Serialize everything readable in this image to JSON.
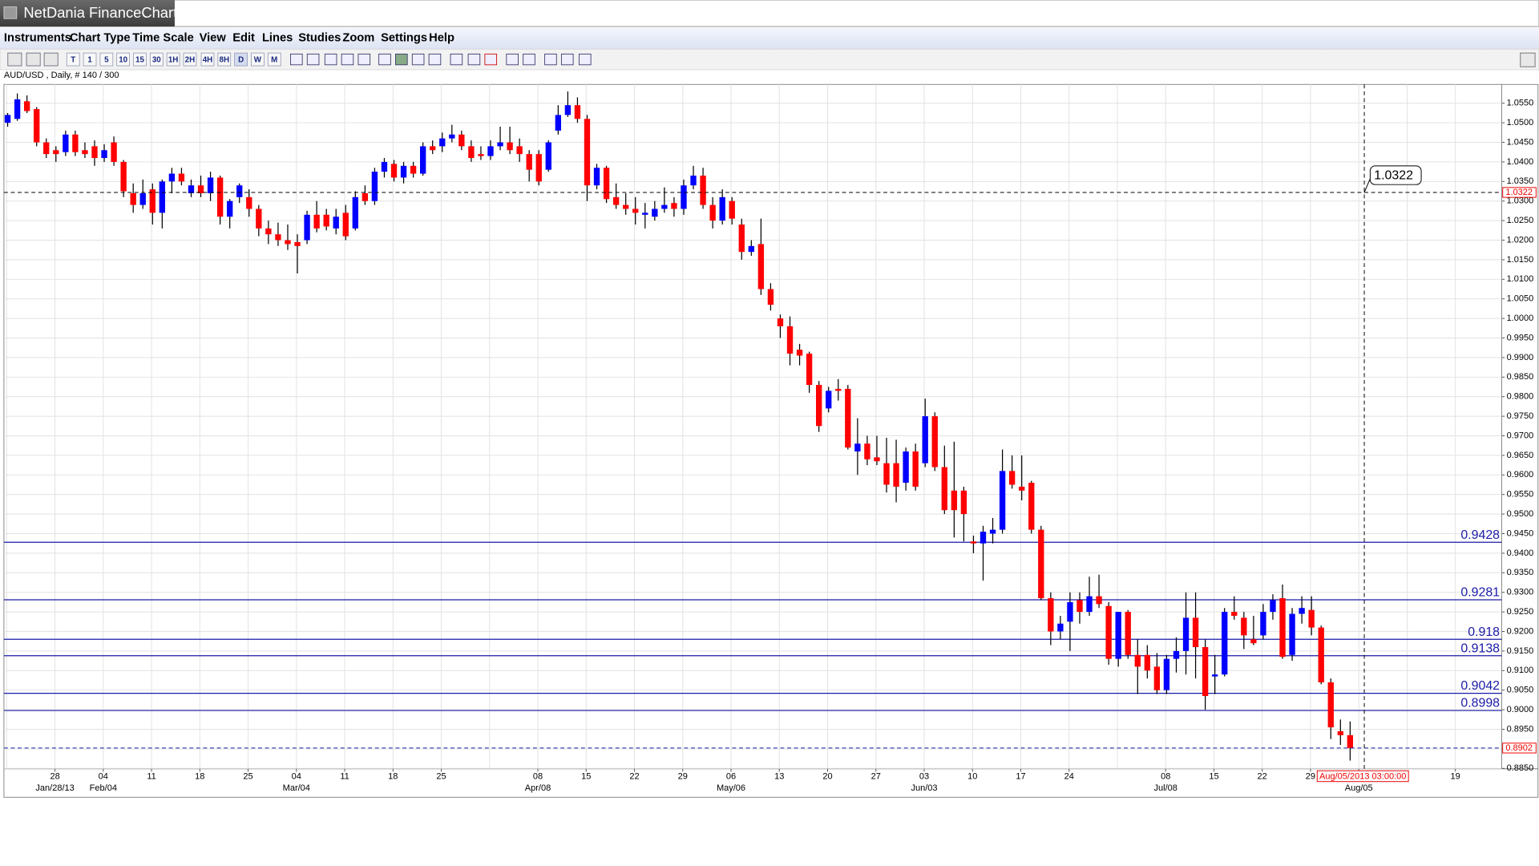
{
  "app_title": "NetDania FinanceChart",
  "menu": [
    "Instruments",
    "Chart Type",
    "Time Scale",
    "View",
    "Edit",
    "Lines",
    "Studies",
    "Zoom",
    "Settings",
    "Help"
  ],
  "toolbar": [
    "T",
    "1",
    "5",
    "10",
    "15",
    "30",
    "1H",
    "2H",
    "4H",
    "8H",
    "D",
    "W",
    "M"
  ],
  "chart_data": {
    "type": "candlestick",
    "symbol_info": "AUD/USD , Daily, # 140 / 300",
    "up_color": "#0000ff",
    "down_color": "#ff0000",
    "level_color": "#1a1aa8",
    "open": [
      1.05,
      1.051,
      1.0555,
      1.0535,
      1.045,
      1.043,
      1.0425,
      1.047,
      1.043,
      1.044,
      1.041,
      1.045,
      1.04,
      1.032,
      1.029,
      1.033,
      1.027,
      1.035,
      1.037,
      1.032,
      1.034,
      1.032,
      1.036,
      1.026,
      1.031,
      1.031,
      1.028,
      1.023,
      1.0215,
      1.02,
      1.0195,
      1.02,
      1.0265,
      1.0265,
      1.023,
      1.027,
      1.023,
      1.032,
      1.03,
      1.0375,
      1.0395,
      1.036,
      1.039,
      1.037,
      1.044,
      1.044,
      1.046,
      1.047,
      1.044,
      1.042,
      1.0415,
      1.044,
      1.045,
      1.044,
      1.042,
      1.042,
      1.038,
      1.048,
      1.052,
      1.0545,
      1.051,
      1.034,
      1.0385,
      1.031,
      1.029,
      1.028,
      1.0265,
      1.026,
      1.028,
      1.0295,
      1.028,
      1.034,
      1.0365,
      1.029,
      1.025,
      1.03,
      1.024,
      1.017,
      1.019,
      1.0075,
      1.0,
      0.998,
      0.992,
      0.991,
      0.983,
      0.977,
      0.982,
      0.982,
      0.966,
      0.968,
      0.9645,
      0.963,
      0.963,
      0.958,
      0.966,
      0.963,
      0.975,
      0.962,
      0.956,
      0.956,
      0.943,
      0.9425,
      0.945,
      0.946,
      0.961,
      0.957,
      0.958,
      0.946,
      0.9285,
      0.92,
      0.9225,
      0.928,
      0.925,
      0.929,
      0.9265,
      0.913,
      0.925,
      0.914,
      0.914,
      0.911,
      0.905,
      0.913,
      0.915,
      0.9235,
      0.916,
      0.9085,
      0.909,
      0.925,
      0.9235,
      0.918,
      0.919,
      0.925,
      0.9285,
      0.914,
      0.9245,
      0.9255,
      0.921,
      0.907,
      0.8945,
      0.8935
    ],
    "high": [
      1.0525,
      1.0575,
      1.057,
      1.054,
      1.046,
      1.044,
      1.048,
      1.048,
      1.045,
      1.0455,
      1.0445,
      1.0465,
      1.0405,
      1.0345,
      1.0355,
      1.0345,
      1.0355,
      1.0385,
      1.0385,
      1.0355,
      1.0365,
      1.0375,
      1.0365,
      1.0305,
      1.0345,
      1.033,
      1.029,
      1.025,
      1.0245,
      1.024,
      1.0215,
      1.0275,
      1.03,
      1.028,
      1.028,
      1.029,
      1.0325,
      1.034,
      1.0385,
      1.041,
      1.0405,
      1.04,
      1.04,
      1.045,
      1.0455,
      1.0475,
      1.0495,
      1.048,
      1.0455,
      1.044,
      1.0455,
      1.049,
      1.049,
      1.046,
      1.043,
      1.043,
      1.0455,
      1.0545,
      1.058,
      1.0565,
      1.052,
      1.0395,
      1.039,
      1.0345,
      1.032,
      1.031,
      1.0295,
      1.03,
      1.0335,
      1.031,
      1.0355,
      1.039,
      1.0385,
      1.031,
      1.033,
      1.031,
      1.0255,
      1.02,
      1.0255,
      1.009,
      1.001,
      1.0005,
      0.9935,
      0.9915,
      0.984,
      0.9825,
      0.9845,
      0.983,
      0.9745,
      0.97,
      0.97,
      0.9695,
      0.969,
      0.967,
      0.968,
      0.9795,
      0.976,
      0.9675,
      0.9685,
      0.957,
      0.9445,
      0.947,
      0.949,
      0.9665,
      0.965,
      0.965,
      0.9585,
      0.947,
      0.93,
      0.924,
      0.93,
      0.93,
      0.934,
      0.9345,
      0.9275,
      0.925,
      0.9255,
      0.918,
      0.9165,
      0.9145,
      0.914,
      0.9185,
      0.93,
      0.93,
      0.918,
      0.914,
      0.926,
      0.929,
      0.925,
      0.924,
      0.927,
      0.9295,
      0.932,
      0.926,
      0.929,
      0.929,
      0.9215,
      0.908,
      0.8975,
      0.897
    ],
    "low": [
      1.049,
      1.0505,
      1.0525,
      1.044,
      1.041,
      1.04,
      1.0415,
      1.0415,
      1.041,
      1.039,
      1.04,
      1.039,
      1.031,
      1.027,
      1.028,
      1.024,
      1.023,
      1.032,
      1.034,
      1.031,
      1.031,
      1.03,
      1.024,
      1.023,
      1.0295,
      1.026,
      1.021,
      1.019,
      1.0185,
      1.0175,
      1.0115,
      1.019,
      1.022,
      1.0225,
      1.0215,
      1.02,
      1.0225,
      1.029,
      1.029,
      1.036,
      1.035,
      1.0345,
      1.036,
      1.0365,
      1.042,
      1.0425,
      1.045,
      1.043,
      1.04,
      1.0405,
      1.0405,
      1.043,
      1.042,
      1.04,
      1.035,
      1.034,
      1.0375,
      1.047,
      1.0515,
      1.05,
      1.03,
      1.033,
      1.0295,
      1.028,
      1.0265,
      1.024,
      1.023,
      1.025,
      1.027,
      1.026,
      1.0265,
      1.033,
      1.028,
      1.023,
      1.024,
      1.024,
      1.015,
      1.016,
      1.006,
      1.002,
      0.995,
      0.988,
      0.988,
      0.981,
      0.971,
      0.976,
      0.979,
      0.9665,
      0.96,
      0.9625,
      0.9625,
      0.9555,
      0.953,
      0.956,
      0.956,
      0.962,
      0.961,
      0.95,
      0.944,
      0.943,
      0.94,
      0.933,
      0.9425,
      0.945,
      0.9565,
      0.9535,
      0.945,
      0.928,
      0.9165,
      0.918,
      0.915,
      0.922,
      0.924,
      0.926,
      0.9115,
      0.911,
      0.913,
      0.904,
      0.908,
      0.904,
      0.904,
      0.9095,
      0.909,
      0.908,
      0.9,
      0.904,
      0.9085,
      0.923,
      0.9155,
      0.9165,
      0.918,
      0.923,
      0.913,
      0.9125,
      0.922,
      0.919,
      0.9065,
      0.8925,
      0.891,
      0.887
    ],
    "close": [
      1.052,
      1.056,
      1.053,
      1.045,
      1.042,
      1.042,
      1.047,
      1.0425,
      1.042,
      1.041,
      1.043,
      1.04,
      1.0325,
      1.029,
      1.032,
      1.027,
      1.035,
      1.037,
      1.035,
      1.034,
      1.032,
      1.036,
      1.026,
      1.03,
      1.034,
      1.028,
      1.023,
      1.0215,
      1.02,
      1.019,
      1.0185,
      1.0265,
      1.023,
      1.0235,
      1.026,
      1.021,
      1.031,
      1.03,
      1.0375,
      1.04,
      1.036,
      1.039,
      1.037,
      1.044,
      1.043,
      1.046,
      1.047,
      1.044,
      1.041,
      1.0415,
      1.044,
      1.045,
      1.043,
      1.042,
      1.038,
      1.035,
      1.045,
      1.052,
      1.0545,
      1.051,
      1.034,
      1.0385,
      1.0305,
      1.029,
      1.028,
      1.027,
      1.027,
      1.028,
      1.029,
      1.028,
      1.034,
      1.0365,
      1.029,
      1.025,
      1.031,
      1.0255,
      1.017,
      1.0185,
      1.0075,
      1.0035,
      0.998,
      0.991,
      0.9905,
      0.983,
      0.9725,
      0.9815,
      0.9815,
      0.967,
      0.968,
      0.964,
      0.9635,
      0.9575,
      0.957,
      0.966,
      0.957,
      0.975,
      0.962,
      0.951,
      0.951,
      0.95,
      0.9425,
      0.9455,
      0.946,
      0.961,
      0.9575,
      0.956,
      0.946,
      0.9285,
      0.92,
      0.922,
      0.9275,
      0.925,
      0.929,
      0.927,
      0.913,
      0.925,
      0.914,
      0.911,
      0.91,
      0.905,
      0.913,
      0.915,
      0.9235,
      0.916,
      0.9035,
      0.909,
      0.925,
      0.924,
      0.919,
      0.917,
      0.925,
      0.928,
      0.9135,
      0.9245,
      0.926,
      0.921,
      0.907,
      0.8955,
      0.8935,
      0.8902
    ],
    "levels": [
      0.9428,
      0.9281,
      0.918,
      0.9138,
      0.9042,
      0.8998
    ],
    "cursor_price": 1.0322,
    "last_price": 0.8902,
    "cursor_time": "Aug/05/2013 03:00:00",
    "ylim": [
      0.8849,
      1.0598
    ],
    "yticks": [
      {
        "value": 1.055,
        "label": "1.0550"
      },
      {
        "value": 1.05,
        "label": "1.0500"
      },
      {
        "value": 1.045,
        "label": "1.0450"
      },
      {
        "value": 1.04,
        "label": "1.0400"
      },
      {
        "value": 1.035,
        "label": "1.0350"
      },
      {
        "value": 1.03,
        "label": "1.0300"
      },
      {
        "value": 1.025,
        "label": "1.0250"
      },
      {
        "value": 1.02,
        "label": "1.0200"
      },
      {
        "value": 1.015,
        "label": "1.0150"
      },
      {
        "value": 1.01,
        "label": "1.0100"
      },
      {
        "value": 1.005,
        "label": "1.0050"
      },
      {
        "value": 1.0,
        "label": "1.0000"
      },
      {
        "value": 0.995,
        "label": "0.9950"
      },
      {
        "value": 0.99,
        "label": "0.9900"
      },
      {
        "value": 0.985,
        "label": "0.9850"
      },
      {
        "value": 0.98,
        "label": "0.9800"
      },
      {
        "value": 0.975,
        "label": "0.9750"
      },
      {
        "value": 0.97,
        "label": "0.9700"
      },
      {
        "value": 0.965,
        "label": "0.9650"
      },
      {
        "value": 0.96,
        "label": "0.9600"
      },
      {
        "value": 0.955,
        "label": "0.9550"
      },
      {
        "value": 0.95,
        "label": "0.9500"
      },
      {
        "value": 0.945,
        "label": "0.9450"
      },
      {
        "value": 0.94,
        "label": "0.9400"
      },
      {
        "value": 0.935,
        "label": "0.9350"
      },
      {
        "value": 0.93,
        "label": "0.9300"
      },
      {
        "value": 0.925,
        "label": "0.9250"
      },
      {
        "value": 0.92,
        "label": "0.9200"
      },
      {
        "value": 0.915,
        "label": "0.9150"
      },
      {
        "value": 0.91,
        "label": "0.9100"
      },
      {
        "value": 0.905,
        "label": "0.9050"
      },
      {
        "value": 0.9,
        "label": "0.9000"
      },
      {
        "value": 0.895,
        "label": "0.8950"
      },
      {
        "value": 0.89,
        "label": "0.8900"
      },
      {
        "value": 0.885,
        "label": "0.8850"
      }
    ],
    "xticks": [
      {
        "label": "28",
        "sublabel": "Jan/28/13"
      },
      {
        "label": "04",
        "sublabel": "Feb/04"
      },
      {
        "label": "11"
      },
      {
        "label": "18"
      },
      {
        "label": "25"
      },
      {
        "label": "04",
        "sublabel": "Mar/04"
      },
      {
        "label": "11"
      },
      {
        "label": "18"
      },
      {
        "label": "25"
      },
      {
        "label": "08",
        "sublabel": "Apr/08"
      },
      {
        "label": "15"
      },
      {
        "label": "22"
      },
      {
        "label": "29"
      },
      {
        "label": "06",
        "sublabel": "May/06"
      },
      {
        "label": "13"
      },
      {
        "label": "20"
      },
      {
        "label": "27"
      },
      {
        "label": "03",
        "sublabel": "Jun/03"
      },
      {
        "label": "10"
      },
      {
        "label": "17"
      },
      {
        "label": "24"
      },
      {
        "label": "08",
        "sublabel": "Jul/08"
      },
      {
        "label": "15"
      },
      {
        "label": "22"
      },
      {
        "label": "29"
      },
      {
        "sublabel": "Aug/05"
      },
      {
        "label": "19"
      }
    ],
    "grid": true
  }
}
